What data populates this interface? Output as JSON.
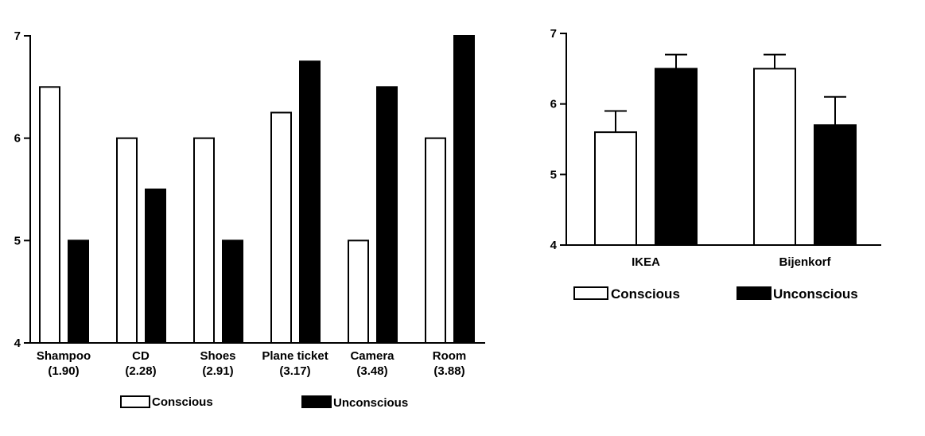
{
  "chart_data": [
    {
      "type": "bar",
      "categories": [
        "Shampoo",
        "CD",
        "Shoes",
        "Plane ticket",
        "Camera",
        "Room"
      ],
      "category_sublabels": [
        "(1.90)",
        "(2.28)",
        "(2.91)",
        "(3.17)",
        "(3.48)",
        "(3.88)"
      ],
      "series": [
        {
          "name": "Conscious",
          "color": "#ffffff",
          "values": [
            6.5,
            6.0,
            6.0,
            6.25,
            5.0,
            6.0
          ]
        },
        {
          "name": "Unconscious",
          "color": "#000000",
          "values": [
            5.0,
            5.5,
            5.0,
            6.75,
            6.5,
            7.0
          ]
        }
      ],
      "ylim": [
        4,
        7
      ],
      "yticks": [
        "4",
        "5",
        "6",
        "7"
      ],
      "legend": "bottom",
      "grid": false
    },
    {
      "type": "bar",
      "categories": [
        "IKEA",
        "Bijenkorf"
      ],
      "series": [
        {
          "name": "Conscious",
          "color": "#ffffff",
          "values": [
            5.6,
            6.5
          ],
          "errors": [
            0.3,
            0.2
          ]
        },
        {
          "name": "Unconscious",
          "color": "#000000",
          "values": [
            6.5,
            5.7
          ],
          "errors": [
            0.2,
            0.4
          ]
        }
      ],
      "ylim": [
        4,
        7
      ],
      "yticks": [
        "4",
        "5",
        "6",
        "7"
      ],
      "legend": "bottom",
      "grid": false
    }
  ]
}
